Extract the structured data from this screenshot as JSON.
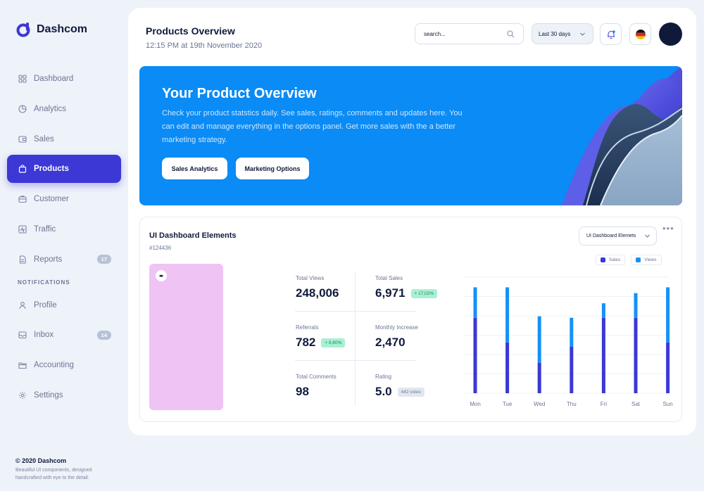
{
  "app": {
    "name": "Dashcom"
  },
  "sidebar": {
    "items": [
      {
        "label": "Dashboard",
        "icon": "grid-icon"
      },
      {
        "label": "Analytics",
        "icon": "pie-chart-icon"
      },
      {
        "label": "Sales",
        "icon": "wallet-icon"
      },
      {
        "label": "Products",
        "icon": "shopping-bag-icon",
        "active": true
      },
      {
        "label": "Customer",
        "icon": "briefcase-icon"
      },
      {
        "label": "Traffic",
        "icon": "activity-icon"
      },
      {
        "label": "Reports",
        "icon": "document-icon",
        "badge": "17"
      }
    ],
    "section_label": "NOTIFICATIONS",
    "items2": [
      {
        "label": "Profile",
        "icon": "user-icon"
      },
      {
        "label": "Inbox",
        "icon": "inbox-icon",
        "badge": "14"
      },
      {
        "label": "Accounting",
        "icon": "folder-icon"
      },
      {
        "label": "Settings",
        "icon": "gear-icon"
      }
    ]
  },
  "footer": {
    "copyright": "© 2020 Dashcom",
    "tagline": "Beautiful UI components, designed handcrafted with eye to the detail."
  },
  "header": {
    "title": "Products Overview",
    "subtitle": "12:15 PM at 19th November 2020",
    "search_placeholder": "search...",
    "range_label": "Last 30 days"
  },
  "hero": {
    "title": "Your Product Overview",
    "description": "Check your product statstics daily. See sales, ratings, comments and updates here. You can edit and manage everything in the options panel. Get more sales with the a better marketing strategy.",
    "button1": "Sales Analytics",
    "button2": "Marketing Options"
  },
  "panel": {
    "title": "UI Dashboard Elements",
    "id": "#124436",
    "select_label": "UI Dashboard Elemets",
    "stats": [
      {
        "label": "Total Views",
        "value": "248,006"
      },
      {
        "label": "Total Sales",
        "value": "6,971",
        "pill": "+ 17,02%"
      },
      {
        "label": "Referrals",
        "value": "782",
        "pill": "+ 8,60%"
      },
      {
        "label": "Monthly Increase",
        "value": "2,470"
      },
      {
        "label": "Total Comments",
        "value": "98"
      },
      {
        "label": "Rating",
        "value": "5.0",
        "pill": "442 votes"
      }
    ]
  },
  "colors": {
    "primary": "#3b38d6",
    "hero": "#0a8bf5",
    "sales": "#3b38d6",
    "views": "#1592f5"
  },
  "chart_data": {
    "type": "bar",
    "stacked": true,
    "categories": [
      "Mon",
      "Tue",
      "Wed",
      "Thu",
      "Fri",
      "Sat",
      "Sun"
    ],
    "series": [
      {
        "name": "Sales",
        "values": [
          52,
          35,
          21,
          32,
          52,
          52,
          35
        ]
      },
      {
        "name": "Views",
        "values": [
          21,
          38,
          32,
          20,
          10,
          17,
          38
        ]
      }
    ],
    "grid": true,
    "legend": "top"
  }
}
